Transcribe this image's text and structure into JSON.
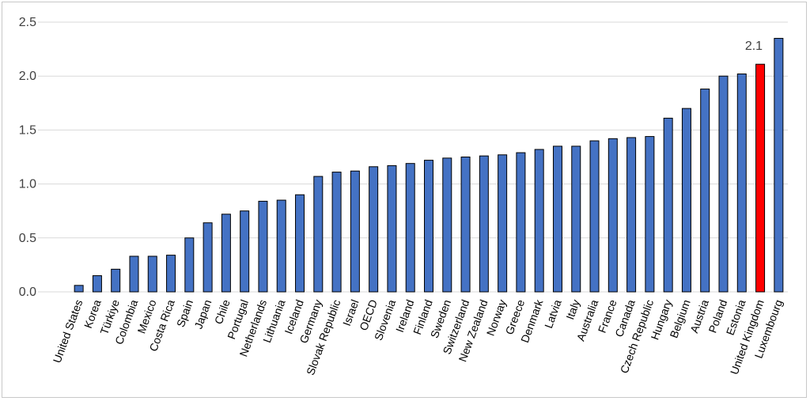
{
  "chart_data": {
    "type": "bar",
    "categories": [
      "United States",
      "Korea",
      "Türkiye",
      "Colombia",
      "Mexico",
      "Costa Rica",
      "Spain",
      "Japan",
      "Chile",
      "Portugal",
      "Netherlands",
      "Lithuania",
      "Iceland",
      "Germany",
      "Slovak Republic",
      "Israel",
      "OECD",
      "Slovenia",
      "Ireland",
      "Finland",
      "Sweden",
      "Switzerland",
      "New Zealand",
      "Norway",
      "Greece",
      "Denmark",
      "Latvia",
      "Italy",
      "Australia",
      "France",
      "Canada",
      "Czech Republic",
      "Hungary",
      "Belgium",
      "Austria",
      "Poland",
      "Estonia",
      "United Kingdom",
      "Luxembourg"
    ],
    "values": [
      0.06,
      0.15,
      0.21,
      0.33,
      0.33,
      0.34,
      0.5,
      0.64,
      0.72,
      0.75,
      0.84,
      0.85,
      0.9,
      1.07,
      1.11,
      1.12,
      1.16,
      1.17,
      1.19,
      1.22,
      1.24,
      1.25,
      1.26,
      1.27,
      1.29,
      1.32,
      1.35,
      1.35,
      1.4,
      1.42,
      1.43,
      1.44,
      1.61,
      1.7,
      1.88,
      2.0,
      2.02,
      2.11,
      2.35
    ],
    "highlight": "United Kingdom",
    "colors": {
      "bar": "#4472c4",
      "highlight": "#ff0000",
      "grid": "#d9d9d9",
      "edge": "#000000"
    },
    "data_labels": [
      {
        "category": "United Kingdom",
        "text": "2.1"
      }
    ],
    "yticks": [
      "0.0",
      "0.5",
      "1.0",
      "1.5",
      "2.0",
      "2.5"
    ],
    "ylim": [
      0,
      2.5
    ],
    "grid": true,
    "title": "",
    "xlabel": "",
    "ylabel": ""
  }
}
